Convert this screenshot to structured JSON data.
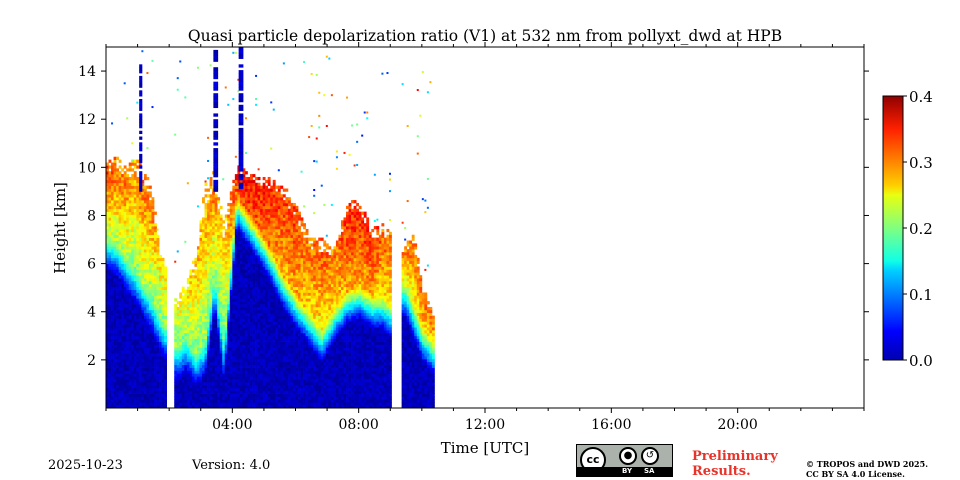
{
  "chart_data": {
    "type": "heatmap",
    "title": "Quasi particle depolarization ratio (V1) at 532 nm from pollyxt_dwd at HPB",
    "xlabel": "Time [UTC]",
    "ylabel": "Height [km]",
    "xlim_hours": [
      0,
      24
    ],
    "ylim_km": [
      0,
      15
    ],
    "x_ticks": [
      {
        "hour": 4,
        "label": "04:00"
      },
      {
        "hour": 8,
        "label": "08:00"
      },
      {
        "hour": 12,
        "label": "12:00"
      },
      {
        "hour": 16,
        "label": "16:00"
      },
      {
        "hour": 20,
        "label": "20:00"
      }
    ],
    "y_ticks": [
      {
        "km": 2,
        "label": "2"
      },
      {
        "km": 4,
        "label": "4"
      },
      {
        "km": 6,
        "label": "6"
      },
      {
        "km": 8,
        "label": "8"
      },
      {
        "km": 10,
        "label": "10"
      },
      {
        "km": 12,
        "label": "12"
      },
      {
        "km": 14,
        "label": "14"
      }
    ],
    "colorbar": {
      "range": [
        0.0,
        0.4
      ],
      "ticks": [
        "0.0",
        "0.1",
        "0.2",
        "0.3",
        "0.4"
      ],
      "colormap": "jet"
    },
    "data_end_hour": 10.4,
    "gaps_hours": [
      [
        1.95,
        2.15
      ],
      [
        9.1,
        9.3
      ]
    ],
    "profiles": [
      {
        "t": 0.0,
        "base": 0,
        "bl": 7.0,
        "top": 10.2,
        "upper": 0.22,
        "cloud": 0.32
      },
      {
        "t": 0.3,
        "base": 0,
        "bl": 6.8,
        "top": 10.4,
        "upper": 0.22,
        "cloud": 0.3
      },
      {
        "t": 0.6,
        "base": 0,
        "bl": 6.2,
        "top": 10.0,
        "upper": 0.22,
        "cloud": 0.3
      },
      {
        "t": 0.9,
        "base": 0,
        "bl": 5.6,
        "top": 10.3,
        "upper": 0.2,
        "cloud": 0.28
      },
      {
        "t": 1.1,
        "base": 0,
        "bl": 5.2,
        "top": 10.0,
        "upper": 0.22,
        "cloud": 0.3
      },
      {
        "t": 1.4,
        "base": 0,
        "bl": 4.5,
        "top": 9.2,
        "upper": 0.2,
        "cloud": 0.3
      },
      {
        "t": 1.7,
        "base": 0,
        "bl": 3.6,
        "top": 6.4,
        "upper": 0.2,
        "cloud": 0.26
      },
      {
        "t": 2.2,
        "base": 0,
        "bl": 2.4,
        "top": 4.4,
        "upper": 0.2,
        "cloud": 0.24
      },
      {
        "t": 2.5,
        "base": 0,
        "bl": 2.8,
        "top": 5.2,
        "upper": 0.2,
        "cloud": 0.26
      },
      {
        "t": 2.8,
        "base": 0,
        "bl": 2.2,
        "top": 6.3,
        "upper": 0.2,
        "cloud": 0.27
      },
      {
        "t": 3.1,
        "base": 0,
        "bl": 2.6,
        "top": 9.3,
        "upper": 0.2,
        "cloud": 0.28
      },
      {
        "t": 3.4,
        "base": 0,
        "bl": 5.4,
        "top": 9.8,
        "upper": 0.2,
        "cloud": 0.3
      },
      {
        "t": 3.7,
        "base": 0,
        "bl": 2.4,
        "top": 7.6,
        "upper": 0.18,
        "cloud": 0.26
      },
      {
        "t": 4.1,
        "base": 0,
        "bl": 8.8,
        "top": 10.0,
        "upper": 0.3,
        "cloud": 0.34
      },
      {
        "t": 4.4,
        "base": 0,
        "bl": 8.2,
        "top": 9.8,
        "upper": 0.32,
        "cloud": 0.35
      },
      {
        "t": 4.8,
        "base": 0,
        "bl": 7.4,
        "top": 9.6,
        "upper": 0.31,
        "cloud": 0.34
      },
      {
        "t": 5.2,
        "base": 0,
        "bl": 6.5,
        "top": 9.5,
        "upper": 0.3,
        "cloud": 0.33
      },
      {
        "t": 5.6,
        "base": 0,
        "bl": 5.4,
        "top": 9.2,
        "upper": 0.28,
        "cloud": 0.32
      },
      {
        "t": 6.0,
        "base": 0,
        "bl": 4.6,
        "top": 8.3,
        "upper": 0.28,
        "cloud": 0.32
      },
      {
        "t": 6.4,
        "base": 0,
        "bl": 3.9,
        "top": 7.1,
        "upper": 0.26,
        "cloud": 0.3
      },
      {
        "t": 6.8,
        "base": 0,
        "bl": 3.2,
        "top": 7.0,
        "upper": 0.26,
        "cloud": 0.31
      },
      {
        "t": 7.2,
        "base": 0,
        "bl": 4.1,
        "top": 6.6,
        "upper": 0.26,
        "cloud": 0.3
      },
      {
        "t": 7.6,
        "base": 0,
        "bl": 4.8,
        "top": 8.5,
        "upper": 0.28,
        "cloud": 0.33
      },
      {
        "t": 8.0,
        "base": 0,
        "bl": 5.0,
        "top": 8.6,
        "upper": 0.28,
        "cloud": 0.33
      },
      {
        "t": 8.4,
        "base": 0,
        "bl": 4.6,
        "top": 7.4,
        "upper": 0.28,
        "cloud": 0.33
      },
      {
        "t": 8.7,
        "base": 0,
        "bl": 4.6,
        "top": 7.6,
        "upper": 0.26,
        "cloud": 0.31
      },
      {
        "t": 9.0,
        "base": 0,
        "bl": 4.2,
        "top": 7.2,
        "upper": 0.26,
        "cloud": 0.3
      },
      {
        "t": 9.4,
        "base": 0,
        "bl": 5.2,
        "top": 6.6,
        "upper": 0.24,
        "cloud": 0.3
      },
      {
        "t": 9.7,
        "base": 0,
        "bl": 4.2,
        "top": 7.2,
        "upper": 0.24,
        "cloud": 0.3
      },
      {
        "t": 10.0,
        "base": 0,
        "bl": 3.2,
        "top": 5.0,
        "upper": 0.26,
        "cloud": 0.31
      },
      {
        "t": 10.4,
        "base": 0,
        "bl": 2.6,
        "top": 3.5,
        "upper": 0.26,
        "cloud": 0.3
      }
    ]
  },
  "footer": {
    "date": "2025-10-23",
    "version": "Version: 4.0",
    "license_badge": {
      "by": "BY",
      "sa": "SA",
      "cc": "cc"
    },
    "preliminary_line1": "Preliminary",
    "preliminary_line2": "Results.",
    "copyright_line1": "© TROPOS and DWD 2025.",
    "copyright_line2": "CC BY SA 4.0 License."
  },
  "colors": {
    "preliminary": "#e8332a",
    "low_depol": "#0a50d8"
  }
}
